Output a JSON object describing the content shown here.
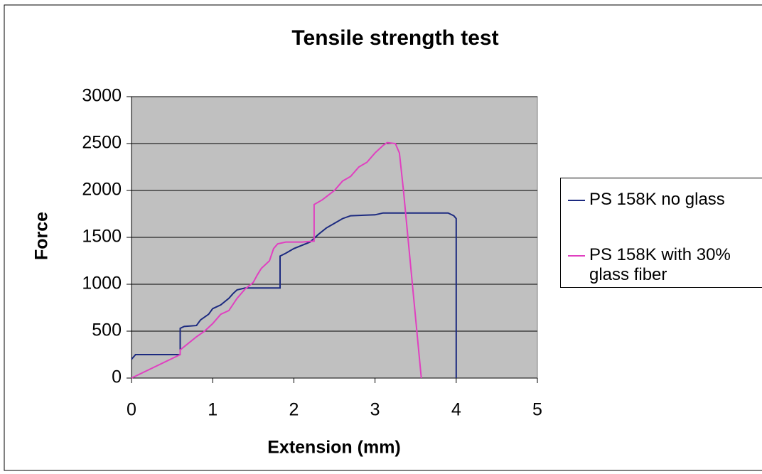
{
  "chart_data": {
    "type": "line",
    "title": "Tensile strength test",
    "x_label": "Extension (mm)",
    "y_label": "Force",
    "xlim": [
      0,
      5
    ],
    "xticks": [
      0,
      1,
      2,
      3,
      4,
      5
    ],
    "ylim": [
      0,
      3000
    ],
    "yticks": [
      0,
      500,
      1000,
      1500,
      2000,
      2500,
      3000
    ],
    "grid": true,
    "legend": "right",
    "series": [
      {
        "name": "PS 158K no glass",
        "color": "#1c2a80",
        "x": [
          0,
          0.05,
          0.6,
          0.6,
          0.65,
          0.8,
          0.85,
          0.95,
          1.0,
          1.1,
          1.2,
          1.25,
          1.3,
          1.4,
          1.83,
          1.83,
          1.9,
          2.0,
          2.2,
          2.3,
          2.4,
          2.5,
          2.6,
          2.7,
          3.0,
          3.1,
          3.9,
          3.97,
          4.0,
          4.0
        ],
        "values": [
          200,
          250,
          250,
          530,
          550,
          560,
          620,
          680,
          740,
          780,
          850,
          900,
          940,
          960,
          960,
          1300,
          1330,
          1380,
          1450,
          1530,
          1600,
          1650,
          1700,
          1730,
          1740,
          1760,
          1760,
          1730,
          1700,
          0
        ]
      },
      {
        "name": "PS 158K with 30% glass fiber",
        "color": "#e040c0",
        "x": [
          0,
          0.6,
          0.6,
          0.7,
          0.8,
          0.9,
          1.0,
          1.1,
          1.2,
          1.3,
          1.4,
          1.5,
          1.55,
          1.6,
          1.7,
          1.75,
          1.8,
          1.9,
          2.1,
          2.25,
          2.25,
          2.35,
          2.5,
          2.6,
          2.7,
          2.8,
          2.9,
          3.0,
          3.1,
          3.15,
          3.25,
          3.3,
          3.35,
          3.57
        ],
        "values": [
          0,
          250,
          300,
          370,
          440,
          500,
          580,
          680,
          720,
          850,
          950,
          1020,
          1100,
          1170,
          1250,
          1380,
          1430,
          1450,
          1450,
          1460,
          1850,
          1900,
          2000,
          2100,
          2150,
          2250,
          2300,
          2400,
          2480,
          2510,
          2500,
          2400,
          2000,
          0
        ]
      }
    ]
  }
}
